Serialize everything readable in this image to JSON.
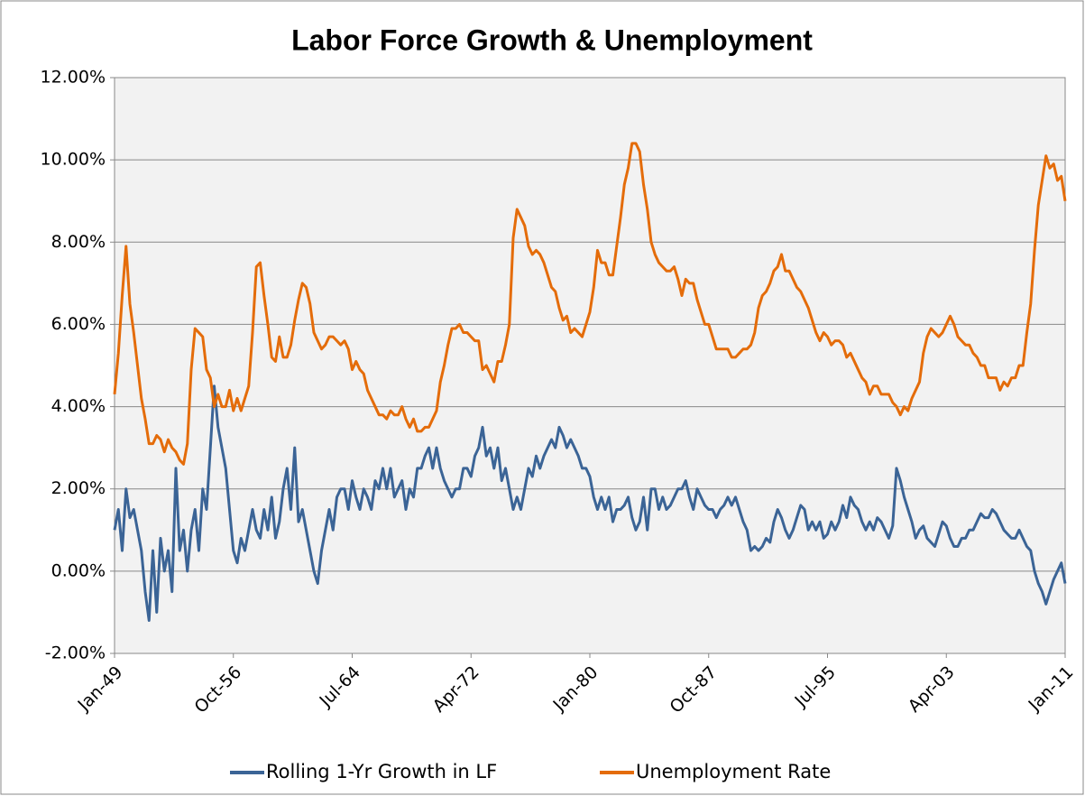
{
  "chart_data": {
    "type": "line",
    "title": "Labor Force Growth & Unemployment",
    "categories": [
      "Jan-49",
      null,
      null,
      null,
      null,
      null,
      null,
      null,
      null,
      null,
      null,
      null,
      null,
      null,
      null,
      null,
      null,
      null,
      null,
      null,
      null,
      null,
      null,
      null,
      null,
      null,
      null,
      null,
      null,
      null,
      null,
      "Oct-56",
      null,
      null,
      null,
      null,
      null,
      null,
      null,
      null,
      null,
      null,
      null,
      null,
      null,
      null,
      null,
      null,
      null,
      null,
      null,
      null,
      null,
      null,
      null,
      null,
      null,
      null,
      null,
      null,
      null,
      null,
      "Jul-64",
      null,
      null,
      null,
      null,
      null,
      null,
      null,
      null,
      null,
      null,
      null,
      null,
      null,
      null,
      null,
      null,
      null,
      null,
      null,
      null,
      null,
      null,
      null,
      null,
      null,
      null,
      null,
      null,
      null,
      null,
      "Apr-72",
      null,
      null,
      null,
      null,
      null,
      null,
      null,
      null,
      null,
      null,
      null,
      null,
      null,
      null,
      null,
      null,
      null,
      null,
      null,
      null,
      null,
      null,
      null,
      null,
      null,
      null,
      null,
      null,
      null,
      null,
      "Jan-80",
      null,
      null,
      null,
      null,
      null,
      null,
      null,
      null,
      null,
      null,
      null,
      null,
      null,
      null,
      null,
      null,
      null,
      null,
      null,
      null,
      null,
      null,
      null,
      null,
      null,
      null,
      null,
      null,
      null,
      null,
      "Oct-87",
      null,
      null,
      null,
      null,
      null,
      null,
      null,
      null,
      null,
      null,
      null,
      null,
      null,
      null,
      null,
      null,
      null,
      null,
      null,
      null,
      null,
      null,
      null,
      null,
      null,
      null,
      null,
      null,
      null,
      null,
      "Jul-95",
      null,
      null,
      null,
      null,
      null,
      null,
      null,
      null,
      null,
      null,
      null,
      null,
      null,
      null,
      null,
      null,
      null,
      null,
      null,
      null,
      null,
      null,
      null,
      null,
      null,
      null,
      null,
      null,
      null,
      null,
      "Apr-03",
      null,
      null,
      null,
      null,
      null,
      null,
      null,
      null,
      null,
      null,
      null,
      null,
      null,
      null,
      null,
      null,
      null,
      null,
      null,
      null,
      null,
      null,
      null,
      null,
      null,
      null,
      null,
      null,
      null,
      null,
      "Jan-11"
    ],
    "series": [
      {
        "name": "Rolling 1-Yr Growth in LF",
        "color": "#3b6496",
        "values": [
          1.0,
          1.5,
          0.5,
          2.0,
          1.3,
          1.5,
          1.0,
          0.5,
          -0.5,
          -1.2,
          0.5,
          -1.0,
          0.8,
          0.0,
          0.5,
          -0.5,
          2.5,
          0.5,
          1.0,
          0.0,
          1.0,
          1.5,
          0.5,
          2.0,
          1.5,
          3.0,
          4.5,
          3.5,
          3.0,
          2.5,
          1.5,
          0.5,
          0.2,
          0.8,
          0.5,
          1.0,
          1.5,
          1.0,
          0.8,
          1.5,
          1.0,
          1.8,
          0.8,
          1.2,
          2.0,
          2.5,
          1.5,
          3.0,
          1.2,
          1.5,
          1.0,
          0.5,
          0.0,
          -0.3,
          0.5,
          1.0,
          1.5,
          1.0,
          1.8,
          2.0,
          2.0,
          1.5,
          2.2,
          1.8,
          1.5,
          2.0,
          1.8,
          1.5,
          2.2,
          2.0,
          2.5,
          2.0,
          2.5,
          1.8,
          2.0,
          2.2,
          1.5,
          2.0,
          1.8,
          2.5,
          2.5,
          2.8,
          3.0,
          2.5,
          3.0,
          2.5,
          2.2,
          2.0,
          1.8,
          2.0,
          2.0,
          2.5,
          2.5,
          2.3,
          2.8,
          3.0,
          3.5,
          2.8,
          3.0,
          2.5,
          3.0,
          2.2,
          2.5,
          2.0,
          1.5,
          1.8,
          1.5,
          2.0,
          2.5,
          2.3,
          2.8,
          2.5,
          2.8,
          3.0,
          3.2,
          3.0,
          3.5,
          3.3,
          3.0,
          3.2,
          3.0,
          2.8,
          2.5,
          2.5,
          2.3,
          1.8,
          1.5,
          1.8,
          1.5,
          1.8,
          1.2,
          1.5,
          1.5,
          1.6,
          1.8,
          1.3,
          1.0,
          1.2,
          1.8,
          1.0,
          2.0,
          2.0,
          1.5,
          1.8,
          1.5,
          1.6,
          1.8,
          2.0,
          2.0,
          2.2,
          1.8,
          1.5,
          2.0,
          1.8,
          1.6,
          1.5,
          1.5,
          1.3,
          1.5,
          1.6,
          1.8,
          1.6,
          1.8,
          1.5,
          1.2,
          1.0,
          0.5,
          0.6,
          0.5,
          0.6,
          0.8,
          0.7,
          1.2,
          1.5,
          1.3,
          1.0,
          0.8,
          1.0,
          1.3,
          1.6,
          1.5,
          1.0,
          1.2,
          1.0,
          1.2,
          0.8,
          0.9,
          1.2,
          1.0,
          1.2,
          1.6,
          1.3,
          1.8,
          1.6,
          1.5,
          1.2,
          1.0,
          1.2,
          1.0,
          1.3,
          1.2,
          1.0,
          0.8,
          1.1,
          2.5,
          2.2,
          1.8,
          1.5,
          1.2,
          0.8,
          1.0,
          1.1,
          0.8,
          0.7,
          0.6,
          0.9,
          1.2,
          1.1,
          0.8,
          0.6,
          0.6,
          0.8,
          0.8,
          1.0,
          1.0,
          1.2,
          1.4,
          1.3,
          1.3,
          1.5,
          1.4,
          1.2,
          1.0,
          0.9,
          0.8,
          0.8,
          1.0,
          0.8,
          0.6,
          0.5,
          0.0,
          -0.3,
          -0.5,
          -0.8,
          -0.5,
          -0.2,
          0.0,
          0.2,
          -0.3
        ]
      },
      {
        "name": "Unemployment Rate",
        "color": "#e46c0a",
        "values": [
          4.3,
          5.3,
          6.7,
          7.9,
          6.5,
          5.8,
          5.0,
          4.2,
          3.7,
          3.1,
          3.1,
          3.3,
          3.2,
          2.9,
          3.2,
          3.0,
          2.9,
          2.7,
          2.6,
          3.1,
          4.9,
          5.9,
          5.8,
          5.7,
          4.9,
          4.7,
          4.0,
          4.3,
          4.0,
          4.0,
          4.4,
          3.9,
          4.2,
          3.9,
          4.2,
          4.5,
          5.8,
          7.4,
          7.5,
          6.7,
          6.0,
          5.2,
          5.1,
          5.7,
          5.2,
          5.2,
          5.5,
          6.1,
          6.6,
          7.0,
          6.9,
          6.5,
          5.8,
          5.6,
          5.4,
          5.5,
          5.7,
          5.7,
          5.6,
          5.5,
          5.6,
          5.4,
          4.9,
          5.1,
          4.9,
          4.8,
          4.4,
          4.2,
          4.0,
          3.8,
          3.8,
          3.7,
          3.9,
          3.8,
          3.8,
          4.0,
          3.7,
          3.5,
          3.7,
          3.4,
          3.4,
          3.5,
          3.5,
          3.7,
          3.9,
          4.6,
          5.0,
          5.5,
          5.9,
          5.9,
          6.0,
          5.8,
          5.8,
          5.7,
          5.6,
          5.6,
          4.9,
          5.0,
          4.8,
          4.6,
          5.1,
          5.1,
          5.5,
          6.0,
          8.1,
          8.8,
          8.6,
          8.4,
          7.9,
          7.7,
          7.8,
          7.7,
          7.5,
          7.2,
          6.9,
          6.8,
          6.4,
          6.1,
          6.2,
          5.8,
          5.9,
          5.8,
          5.7,
          6.0,
          6.3,
          6.9,
          7.8,
          7.5,
          7.5,
          7.2,
          7.2,
          7.9,
          8.6,
          9.4,
          9.8,
          10.4,
          10.4,
          10.2,
          9.4,
          8.8,
          8.0,
          7.7,
          7.5,
          7.4,
          7.3,
          7.3,
          7.4,
          7.1,
          6.7,
          7.1,
          7.0,
          7.0,
          6.6,
          6.3,
          6.0,
          6.0,
          5.7,
          5.4,
          5.4,
          5.4,
          5.4,
          5.2,
          5.2,
          5.3,
          5.4,
          5.4,
          5.5,
          5.8,
          6.4,
          6.7,
          6.8,
          7.0,
          7.3,
          7.4,
          7.7,
          7.3,
          7.3,
          7.1,
          6.9,
          6.8,
          6.6,
          6.4,
          6.1,
          5.8,
          5.6,
          5.8,
          5.7,
          5.5,
          5.6,
          5.6,
          5.5,
          5.2,
          5.3,
          5.1,
          4.9,
          4.7,
          4.6,
          4.3,
          4.5,
          4.5,
          4.3,
          4.3,
          4.3,
          4.1,
          4.0,
          3.8,
          4.0,
          3.9,
          4.2,
          4.4,
          4.6,
          5.3,
          5.7,
          5.9,
          5.8,
          5.7,
          5.8,
          6.0,
          6.2,
          6.0,
          5.7,
          5.6,
          5.5,
          5.5,
          5.3,
          5.2,
          5.0,
          5.0,
          4.7,
          4.7,
          4.7,
          4.4,
          4.6,
          4.5,
          4.7,
          4.7,
          5.0,
          5.0,
          5.8,
          6.5,
          7.8,
          8.9,
          9.5,
          10.1,
          9.8,
          9.9,
          9.5,
          9.6,
          9.0
        ]
      }
    ],
    "ylim": [
      -2,
      12
    ],
    "yticks": [
      {
        "value": -2,
        "label": "-2.00%"
      },
      {
        "value": 0,
        "label": "0.00%"
      },
      {
        "value": 2,
        "label": "2.00%"
      },
      {
        "value": 4,
        "label": "4.00%"
      },
      {
        "value": 6,
        "label": "6.00%"
      },
      {
        "value": 8,
        "label": "8.00%"
      },
      {
        "value": 10,
        "label": "10.00%"
      },
      {
        "value": 12,
        "label": "12.00%"
      }
    ],
    "grid": true,
    "legend": "bottom"
  }
}
